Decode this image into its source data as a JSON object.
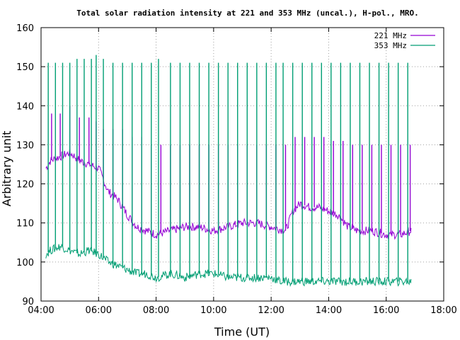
{
  "chart_data": {
    "type": "line",
    "title": "Total solar radiation intensity at 221 and 353 MHz (uncal.), H-pol., MRO.",
    "xlabel": "Time (UT)",
    "ylabel": "Arbitrary unit",
    "xlim": [
      "04:00",
      "18:00"
    ],
    "ylim": [
      90,
      160
    ],
    "x_ticks": [
      "04:00",
      "06:00",
      "08:00",
      "10:00",
      "12:00",
      "14:00",
      "16:00",
      "18:00"
    ],
    "y_ticks": [
      "90",
      "100",
      "110",
      "120",
      "130",
      "140",
      "150",
      "160"
    ],
    "grid": true,
    "legend_position": "top-right",
    "colors": {
      "221 MHz": "#9400d3",
      "353 MHz": "#009e73",
      "axes": "#000000",
      "grid": "#a0a0a0"
    },
    "series": [
      {
        "name": "221 MHz",
        "baseline": {
          "x": [
            "04:10",
            "04:20",
            "04:40",
            "05:00",
            "05:20",
            "05:40",
            "06:00",
            "06:20",
            "06:40",
            "07:00",
            "07:20",
            "07:40",
            "08:00",
            "08:30",
            "09:00",
            "09:30",
            "10:00",
            "10:30",
            "11:00",
            "11:30",
            "12:00",
            "12:30",
            "12:45",
            "13:00",
            "13:20",
            "13:40",
            "14:00",
            "14:20",
            "14:40",
            "15:00",
            "15:30",
            "16:00",
            "16:30",
            "16:52"
          ],
          "y": [
            124,
            126,
            127,
            128,
            126,
            125,
            124,
            118,
            116,
            112,
            109,
            108,
            107,
            108,
            109,
            109,
            108,
            109,
            110,
            110,
            109,
            108,
            113,
            115,
            114,
            114,
            113,
            112,
            109,
            108,
            108,
            107,
            107,
            108
          ]
        },
        "spikes": {
          "x": [
            "04:22",
            "04:40",
            "05:00",
            "05:20",
            "05:40",
            "05:55",
            "06:10",
            "06:30",
            "06:50",
            "07:10",
            "07:30",
            "07:50",
            "08:10",
            "08:30",
            "08:50",
            "09:10",
            "09:30",
            "09:50",
            "10:10",
            "10:30",
            "10:50",
            "11:10",
            "11:30",
            "11:50",
            "12:10",
            "12:30",
            "12:50",
            "13:10",
            "13:30",
            "13:50",
            "14:10",
            "14:30",
            "14:50",
            "15:10",
            "15:30",
            "15:50",
            "16:10",
            "16:30",
            "16:50"
          ],
          "y": [
            138,
            138,
            140,
            137,
            137,
            136,
            134,
            134,
            134,
            132,
            132,
            130,
            130,
            130,
            130,
            130,
            130,
            130,
            130,
            130,
            130,
            130,
            130,
            130,
            130,
            130,
            132,
            132,
            132,
            132,
            131,
            131,
            130,
            130,
            130,
            130,
            130,
            130,
            130
          ]
        }
      },
      {
        "name": "353 MHz",
        "baseline": {
          "x": [
            "04:10",
            "04:20",
            "04:40",
            "05:00",
            "05:20",
            "05:40",
            "06:00",
            "06:20",
            "06:40",
            "07:00",
            "07:20",
            "07:40",
            "08:00",
            "08:30",
            "09:00",
            "09:30",
            "10:00",
            "10:30",
            "11:00",
            "11:30",
            "12:00",
            "12:20",
            "12:40",
            "13:00",
            "13:30",
            "14:00",
            "14:30",
            "15:00",
            "15:30",
            "16:00",
            "16:30",
            "16:52"
          ],
          "y": [
            102,
            103,
            104,
            103,
            102,
            103,
            102,
            100,
            99,
            98,
            97,
            97,
            96,
            97,
            96,
            97,
            97,
            96,
            96,
            96,
            96,
            95,
            95,
            95,
            95,
            95,
            95,
            95,
            95,
            95,
            95,
            95
          ]
        },
        "spikes": {
          "x": [
            "04:15",
            "04:30",
            "04:45",
            "05:00",
            "05:15",
            "05:30",
            "05:45",
            "05:55",
            "06:10",
            "06:30",
            "06:50",
            "07:10",
            "07:30",
            "07:50",
            "08:05",
            "08:30",
            "08:50",
            "09:10",
            "09:30",
            "09:50",
            "10:10",
            "10:30",
            "10:50",
            "11:10",
            "11:30",
            "11:50",
            "12:10",
            "12:25",
            "12:45",
            "13:05",
            "13:25",
            "13:45",
            "14:05",
            "14:25",
            "14:45",
            "15:05",
            "15:25",
            "15:45",
            "16:05",
            "16:25",
            "16:45"
          ],
          "y": [
            151,
            151,
            151,
            151,
            152,
            152,
            152,
            153,
            152,
            151,
            151,
            151,
            151,
            151,
            152,
            151,
            151,
            151,
            151,
            151,
            151,
            151,
            151,
            151,
            151,
            151,
            151,
            151,
            151,
            151,
            151,
            151,
            151,
            151,
            151,
            151,
            151,
            151,
            151,
            151,
            151
          ]
        }
      }
    ]
  }
}
